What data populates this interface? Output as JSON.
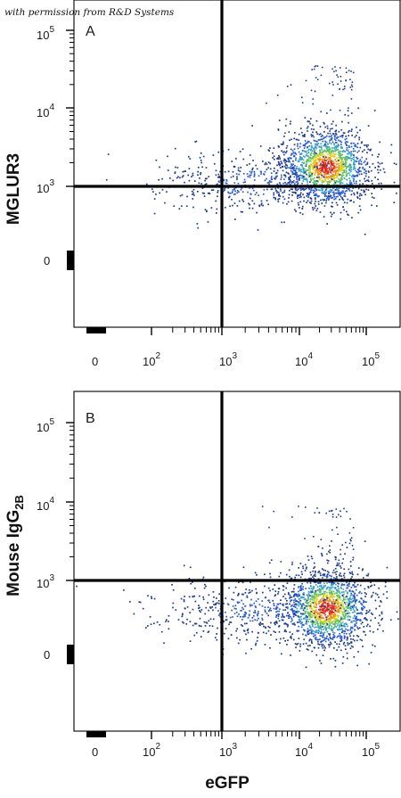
{
  "watermark": "with permission from R&D Systems",
  "colors": {
    "frame": "#000000",
    "gate": "#000000",
    "density": [
      "#1f3a93",
      "#2a5bd7",
      "#3aa0c8",
      "#5cc06a",
      "#d8d020",
      "#f08a1c",
      "#e02a1a"
    ]
  },
  "chart_data": [
    {
      "type": "scatter",
      "panel_label": "A",
      "ylabel": "MGLUR3",
      "xlabel": "",
      "x_scale": "biexponential",
      "y_scale": "biexponential",
      "x_tick_labels": [
        {
          "base": "0",
          "exp": ""
        },
        {
          "base": "10",
          "exp": "2"
        },
        {
          "base": "10",
          "exp": "3"
        },
        {
          "base": "10",
          "exp": "4"
        },
        {
          "base": "10",
          "exp": "5"
        }
      ],
      "y_tick_labels": [
        {
          "base": "10",
          "exp": "5"
        },
        {
          "base": "10",
          "exp": "4"
        },
        {
          "base": "10",
          "exp": "3"
        },
        {
          "base": "0",
          "exp": ""
        }
      ],
      "quadrant_gate": {
        "x": 1000,
        "y": 1100
      },
      "populations": [
        {
          "center": [
            25000,
            1800
          ],
          "count": 1500
        },
        {
          "center": [
            2500,
            1100
          ],
          "count": 450
        }
      ]
    },
    {
      "type": "scatter",
      "panel_label": "B",
      "ylabel": "Mouse IgG",
      "ylabel_subscript": "2B",
      "xlabel": "eGFP",
      "x_scale": "biexponential",
      "y_scale": "biexponential",
      "x_tick_labels": [
        {
          "base": "0",
          "exp": ""
        },
        {
          "base": "10",
          "exp": "2"
        },
        {
          "base": "10",
          "exp": "3"
        },
        {
          "base": "10",
          "exp": "4"
        },
        {
          "base": "10",
          "exp": "5"
        }
      ],
      "y_tick_labels": [
        {
          "base": "10",
          "exp": "5"
        },
        {
          "base": "10",
          "exp": "4"
        },
        {
          "base": "10",
          "exp": "3"
        },
        {
          "base": "0",
          "exp": ""
        }
      ],
      "quadrant_gate": {
        "x": 1000,
        "y": 1100
      },
      "populations": [
        {
          "center": [
            25000,
            450
          ],
          "count": 1500
        },
        {
          "center": [
            2500,
            430
          ],
          "count": 450
        }
      ]
    }
  ]
}
